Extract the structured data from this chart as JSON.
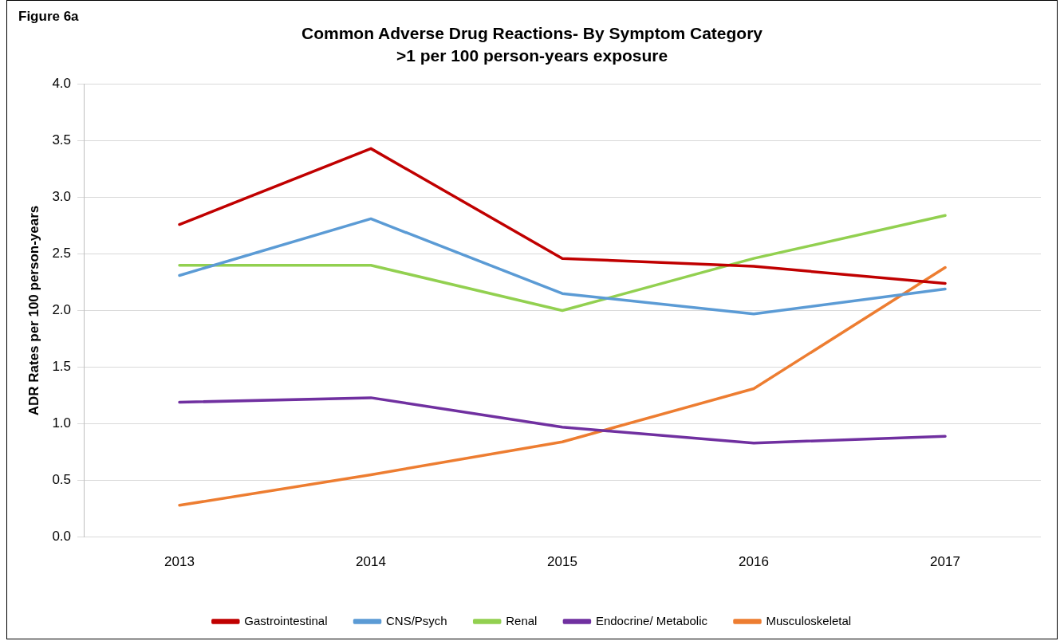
{
  "chart_data": {
    "type": "line",
    "title": "Common Adverse Drug Reactions- By Symptom Category",
    "subtitle": ">1 per 100 person-years exposure",
    "ylabel": "ADR Rates per 100 person-years",
    "annotations": [
      "Figure 6a"
    ],
    "categories": [
      "2013",
      "2014",
      "2015",
      "2016",
      "2017"
    ],
    "series": [
      {
        "name": "Gastrointestinal",
        "color": "#c00000",
        "values": [
          2.76,
          3.43,
          2.46,
          2.39,
          2.24
        ]
      },
      {
        "name": "CNS/Psych",
        "color": "#5b9bd5",
        "values": [
          2.31,
          2.81,
          2.15,
          1.97,
          2.19
        ]
      },
      {
        "name": "Renal",
        "color": "#92d050",
        "values": [
          2.4,
          2.4,
          2.0,
          2.46,
          2.84
        ]
      },
      {
        "name": "Endocrine/ Metabolic",
        "color": "#7030a0",
        "values": [
          1.19,
          1.23,
          0.97,
          0.83,
          0.89
        ]
      },
      {
        "name": "Musculoskeletal",
        "color": "#ed7d31",
        "values": [
          0.28,
          0.55,
          0.84,
          1.31,
          2.38
        ]
      }
    ],
    "ylim": [
      0,
      4
    ],
    "yticks": [
      {
        "value": 0,
        "label": "0.0"
      },
      {
        "value": 0.5,
        "label": "0.5"
      },
      {
        "value": 1,
        "label": "1.0"
      },
      {
        "value": 1.5,
        "label": "1.5"
      },
      {
        "value": 2,
        "label": "2.0"
      },
      {
        "value": 2.5,
        "label": "2.5"
      },
      {
        "value": 3,
        "label": "3.0"
      },
      {
        "value": 3.5,
        "label": "3.5"
      },
      {
        "value": 4,
        "label": "4.0"
      }
    ],
    "grid": "y",
    "legend": "bottom",
    "marker": "none",
    "line_style": "solid"
  }
}
